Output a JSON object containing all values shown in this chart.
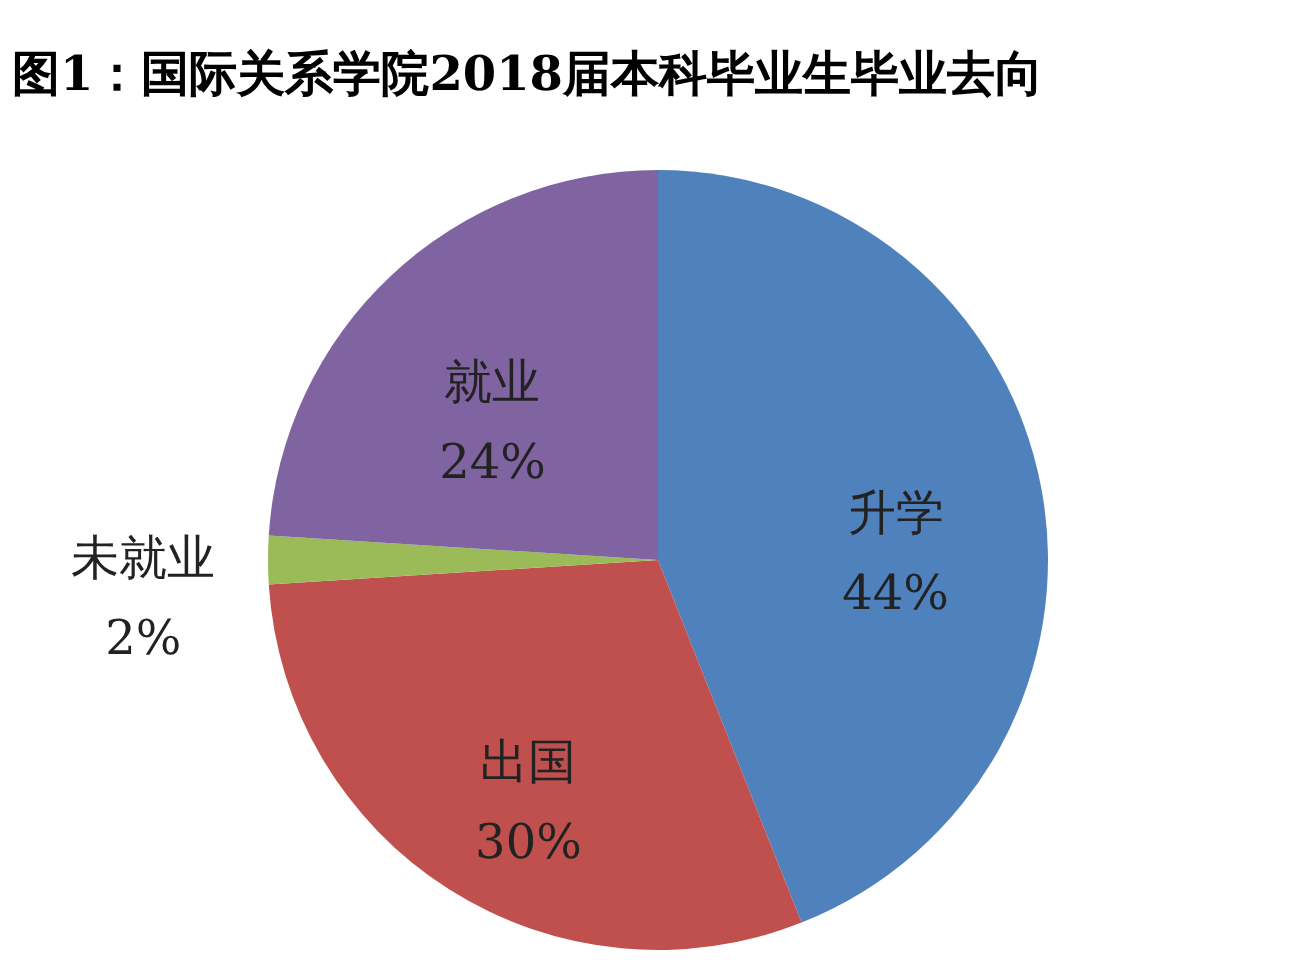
{
  "chart_data": {
    "type": "pie",
    "title": "图1：国际关系学院2018届本科毕业生毕业去向",
    "categories": [
      "升学",
      "出国",
      "未就业",
      "就业"
    ],
    "values": [
      44,
      30,
      2,
      24
    ],
    "colors": [
      "#4f81bd",
      "#c0504d",
      "#9bbb59",
      "#8064a2"
    ],
    "value_labels": [
      "44%",
      "30%",
      "2%",
      "24%"
    ],
    "legend": false
  }
}
